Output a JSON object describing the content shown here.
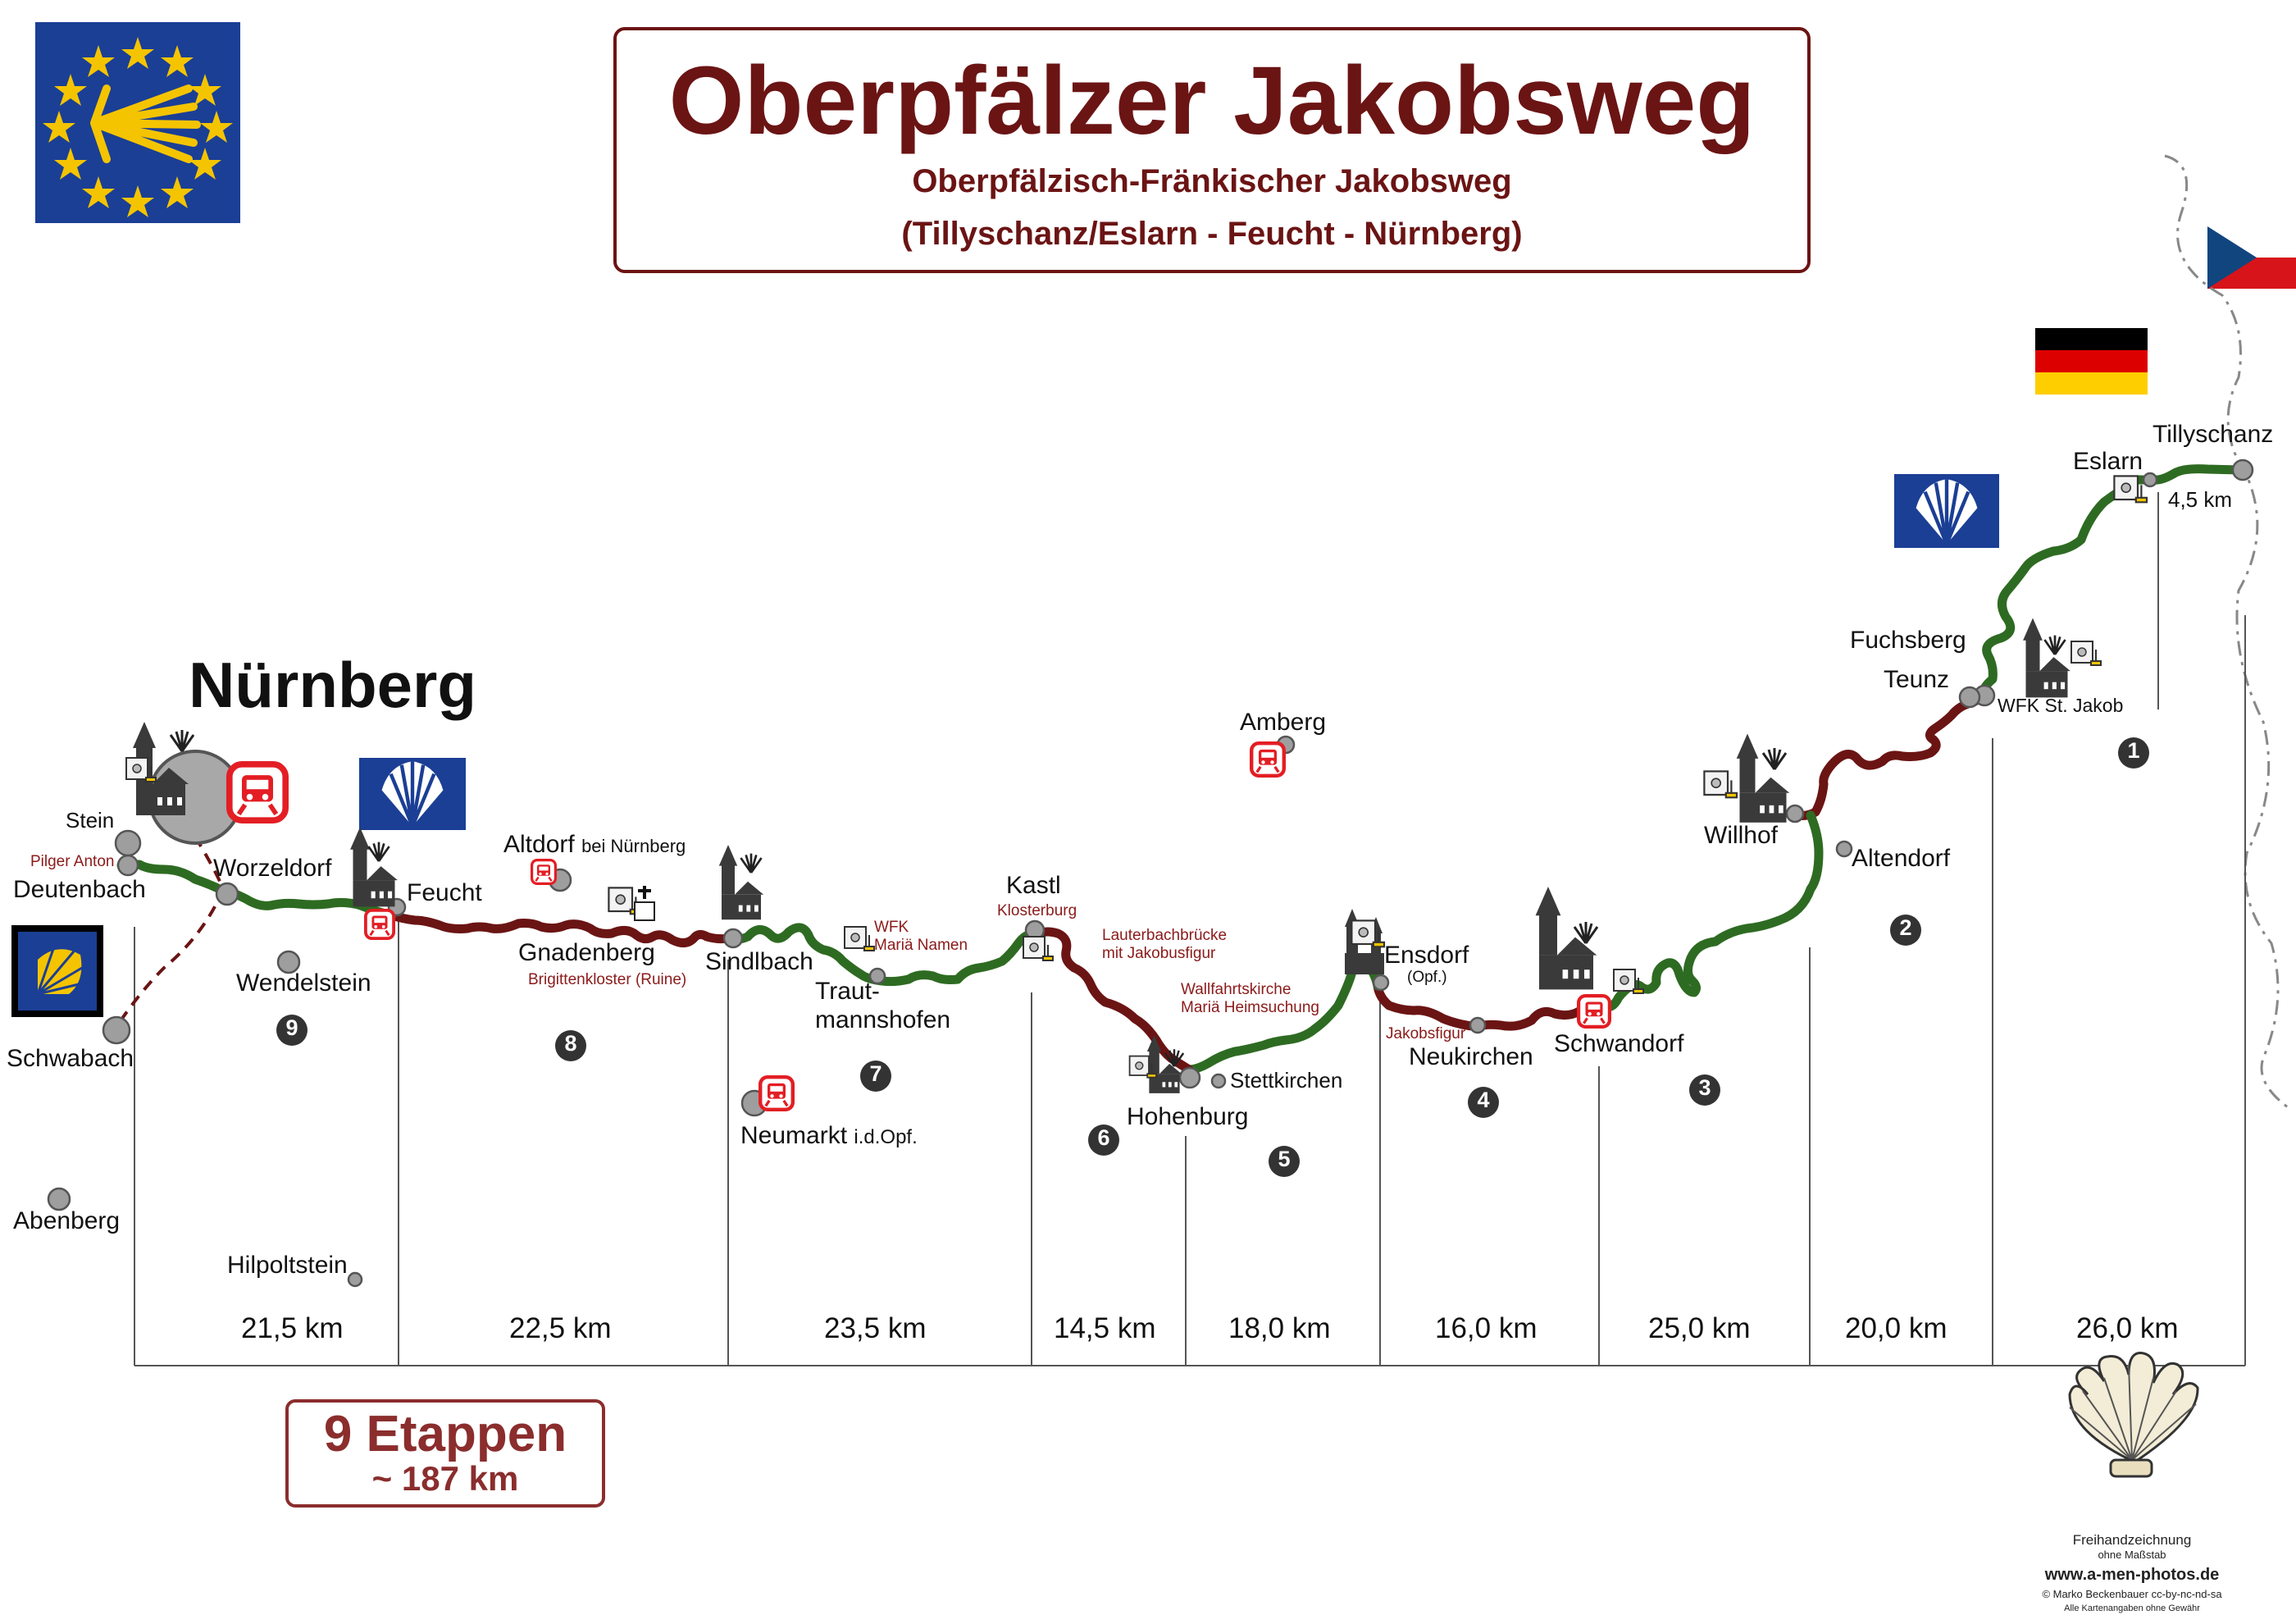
{
  "title": {
    "main": "Oberpfälzer Jakobsweg",
    "sub1": "Oberpfälzisch-Fränkischer Jakobsweg",
    "sub2": "(Tillyschanz/Eslarn - Feucht - Nürnberg)"
  },
  "city": "Nürnberg",
  "places": {
    "stein": "Stein",
    "pilger_anton": "Pilger Anton",
    "deutenbach": "Deutenbach",
    "worzeldorf": "Worzeldorf",
    "feucht": "Feucht",
    "wendelstein": "Wendelstein",
    "schwabach": "Schwabach",
    "abenberg": "Abenberg",
    "hilpoltstein": "Hilpoltstein",
    "altdorf": "Altdorf",
    "altdorf_suffix": "bei Nürnberg",
    "gnadenberg": "Gnadenberg",
    "brigittenkloster": "Brigittenkloster (Ruine)",
    "sindlbach": "Sindlbach",
    "neumarkt": "Neumarkt",
    "neumarkt_suffix": "i.d.Opf.",
    "wfk_maria_namen_1": "WFK",
    "wfk_maria_namen_2": "Mariä Namen",
    "trautmannshofen_1": "Traut-",
    "trautmannshofen_2": "mannshofen",
    "kastl": "Kastl",
    "klosterburg": "Klosterburg",
    "lauterbach_1": "Lauterbachbrücke",
    "lauterbach_2": "mit Jakobusfigur",
    "wallfahrt_1": "Wallfahrtskirche",
    "wallfahrt_2": "Mariä Heimsuchung",
    "hohenburg": "Hohenburg",
    "stettkirchen": "Stettkirchen",
    "amberg": "Amberg",
    "ensdorf": "Ensdorf",
    "ensdorf_suffix": "(Opf.)",
    "jakobsfigur": "Jakobsfigur",
    "neukirchen": "Neukirchen",
    "schwandorf": "Schwandorf",
    "willhof": "Willhof",
    "altendorf": "Altendorf",
    "fuchsberg": "Fuchsberg",
    "teunz": "Teunz",
    "wfk_st_jakob": "WFK St. Jakob",
    "eslarn": "Eslarn",
    "tillyschanz": "Tillyschanz",
    "eslarn_km": "4,5 km"
  },
  "stages": [
    {
      "number": "9",
      "km": "21,5 km"
    },
    {
      "number": "8",
      "km": "22,5 km"
    },
    {
      "number": "7",
      "km": "23,5 km"
    },
    {
      "number": "6",
      "km": "14,5 km"
    },
    {
      "number": "5",
      "km": "18,0 km"
    },
    {
      "number": "4",
      "km": "16,0 km"
    },
    {
      "number": "3",
      "km": "25,0 km"
    },
    {
      "number": "2",
      "km": "20,0 km"
    },
    {
      "number": "1",
      "km": "26,0 km"
    }
  ],
  "summary": {
    "etappen": "9 Etappen",
    "total": "~ 187 km"
  },
  "credits": {
    "line1": "Freihandzeichnung",
    "line2": "ohne Maßstab",
    "line3": "www.a-men-photos.de",
    "line4": "© Marko Beckenbauer  cc-by-nc-nd-sa",
    "line5": "Alle Kartenangaben ohne Gewähr"
  },
  "colors": {
    "route_green": "#2e6b22",
    "route_red": "#6b1414",
    "title_red": "#6b1414",
    "flag_blue": "#1b3f95",
    "shell_yellow": "#f5c400",
    "train_red": "#e31e24"
  },
  "icons": {
    "eu_camino": "camino-shell-flag-icon",
    "train": "train-icon",
    "church": "church-icon",
    "stamp": "stamp-icon",
    "shell": "scallop-shell-icon"
  }
}
